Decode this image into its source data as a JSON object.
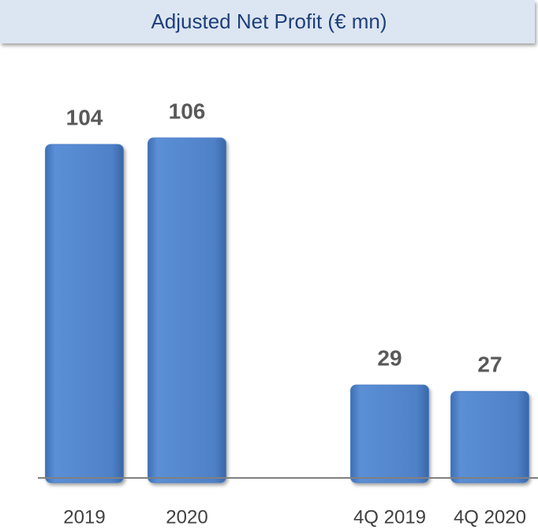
{
  "chart_data": {
    "type": "bar",
    "title": "Adjusted Net Profit (€ mn)",
    "categories": [
      "2019",
      "2020",
      "4Q 2019",
      "4Q 2020"
    ],
    "values": [
      104,
      106,
      29,
      27
    ],
    "color": "#4f81c7",
    "ylim": [
      0,
      120
    ]
  }
}
